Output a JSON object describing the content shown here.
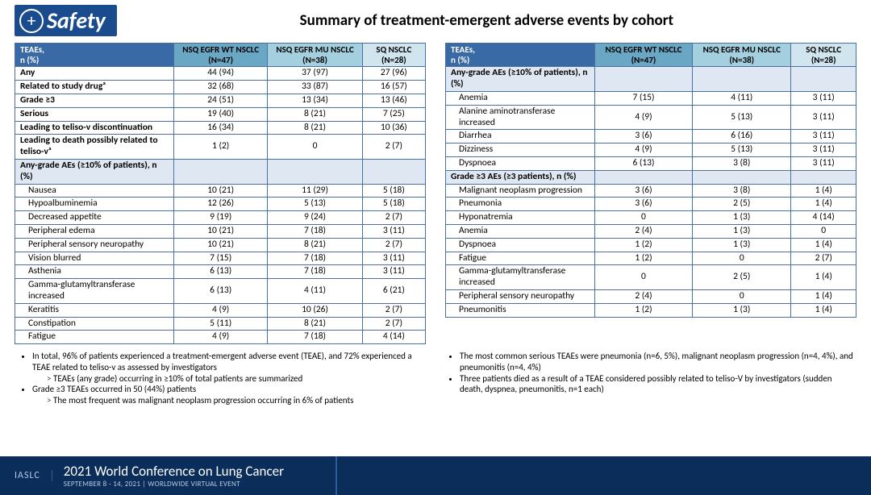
{
  "badge": {
    "icon": "+",
    "text": "Safety"
  },
  "title": "Summary of treatment-emergent adverse events by cohort",
  "columns": {
    "row_header": "TEAEs,\nn (%)",
    "c1": "NSQ EGFR WT NSCLC (N=47)",
    "c2": "NSQ EGFR MU NSCLC (N=38)",
    "c3": "SQ NSCLC (N=28)"
  },
  "left_rows": [
    {
      "label": "Any",
      "bold": true,
      "v": [
        "44 (94)",
        "37 (97)",
        "27 (96)"
      ]
    },
    {
      "label": "Related to study drugᵃ",
      "bold": true,
      "v": [
        "32 (68)",
        "33 (87)",
        "16 (57)"
      ]
    },
    {
      "label": "Grade ≥3",
      "bold": true,
      "v": [
        "24 (51)",
        "13 (34)",
        "13 (46)"
      ]
    },
    {
      "label": "Serious",
      "bold": true,
      "v": [
        "19 (40)",
        "8 (21)",
        "7 (25)"
      ]
    },
    {
      "label": "Leading to teliso-v discontinuation",
      "bold": true,
      "v": [
        "16 (34)",
        "8 (21)",
        "10 (36)"
      ]
    },
    {
      "label": "Leading to death possibly related to teliso-vᵃ",
      "bold": true,
      "v": [
        "1 (2)",
        "0",
        "2 (7)"
      ]
    },
    {
      "section": "Any-grade AEs (≥10% of patients), n (%)"
    },
    {
      "label": "Nausea",
      "indent": true,
      "v": [
        "10 (21)",
        "11 (29)",
        "5 (18)"
      ]
    },
    {
      "label": "Hypoalbuminemia",
      "indent": true,
      "v": [
        "12 (26)",
        "5 (13)",
        "5 (18)"
      ]
    },
    {
      "label": "Decreased appetite",
      "indent": true,
      "v": [
        "9 (19)",
        "9 (24)",
        "2 (7)"
      ]
    },
    {
      "label": "Peripheral edema",
      "indent": true,
      "v": [
        "10 (21)",
        "7 (18)",
        "3 (11)"
      ]
    },
    {
      "label": "Peripheral sensory neuropathy",
      "indent": true,
      "v": [
        "10 (21)",
        "8 (21)",
        "2 (7)"
      ]
    },
    {
      "label": "Vision blurred",
      "indent": true,
      "v": [
        "7 (15)",
        "7 (18)",
        "3 (11)"
      ]
    },
    {
      "label": "Asthenia",
      "indent": true,
      "v": [
        "6 (13)",
        "7 (18)",
        "3 (11)"
      ]
    },
    {
      "label": "Gamma-glutamyltransferase increased",
      "indent": true,
      "v": [
        "6 (13)",
        "4 (11)",
        "6 (21)"
      ]
    },
    {
      "label": "Keratitis",
      "indent": true,
      "v": [
        "4 (9)",
        "10 (26)",
        "2 (7)"
      ]
    },
    {
      "label": "Constipation",
      "indent": true,
      "v": [
        "5 (11)",
        "8 (21)",
        "2 (7)"
      ]
    },
    {
      "label": "Fatigue",
      "indent": true,
      "v": [
        "4 (9)",
        "7 (18)",
        "4 (14)"
      ]
    }
  ],
  "right_rows": [
    {
      "section": "Any-grade AEs (≥10% of patients), n (%)"
    },
    {
      "label": "Anemia",
      "indent": true,
      "v": [
        "7 (15)",
        "4 (11)",
        "3 (11)"
      ]
    },
    {
      "label": "Alanine aminotransferase increased",
      "indent": true,
      "v": [
        "4 (9)",
        "5 (13)",
        "3 (11)"
      ]
    },
    {
      "label": "Diarrhea",
      "indent": true,
      "v": [
        "3 (6)",
        "6 (16)",
        "3 (11)"
      ]
    },
    {
      "label": "Dizziness",
      "indent": true,
      "v": [
        "4 (9)",
        "5 (13)",
        "3 (11)"
      ]
    },
    {
      "label": "Dyspnoea",
      "indent": true,
      "v": [
        "6 (13)",
        "3 (8)",
        "3 (11)"
      ]
    },
    {
      "section": "Grade ≥3 AEs (≥3 patients), n (%)"
    },
    {
      "label": "Malignant neoplasm progression",
      "indent": true,
      "v": [
        "3 (6)",
        "3 (8)",
        "1 (4)"
      ]
    },
    {
      "label": "Pneumonia",
      "indent": true,
      "v": [
        "3 (6)",
        "2 (5)",
        "1 (4)"
      ]
    },
    {
      "label": "Hyponatremia",
      "indent": true,
      "v": [
        "0",
        "1 (3)",
        "4 (14)"
      ]
    },
    {
      "label": "Anemia",
      "indent": true,
      "v": [
        "2 (4)",
        "1 (3)",
        "0"
      ]
    },
    {
      "label": "Dyspnoea",
      "indent": true,
      "v": [
        "1 (2)",
        "1 (3)",
        "1 (4)"
      ]
    },
    {
      "label": "Fatigue",
      "indent": true,
      "v": [
        "1 (2)",
        "0",
        "2 (7)"
      ]
    },
    {
      "label": "Gamma-glutamyltransferase increased",
      "indent": true,
      "v": [
        "0",
        "2 (5)",
        "1 (4)"
      ]
    },
    {
      "label": "Peripheral sensory neuropathy",
      "indent": true,
      "v": [
        "2 (4)",
        "0",
        "1 (4)"
      ]
    },
    {
      "label": "Pneumonitis",
      "indent": true,
      "v": [
        "1 (2)",
        "1 (3)",
        "1 (4)"
      ]
    }
  ],
  "bullets_left": [
    {
      "t": "In total, 96% of patients experienced a treatment-emergent adverse event (TEAE), and 72% experienced a TEAE related to teliso-v as assessed by investigators",
      "sub": [
        "TEAEs (any grade) occurring in ≥10% of total patients are summarized"
      ]
    },
    {
      "t": "Grade ≥3 TEAEs occurred in 50 (44%) patients",
      "sub": [
        "The most frequent was malignant neoplasm progression occurring in 6% of patients"
      ]
    }
  ],
  "bullets_right": [
    {
      "t": "The most common serious TEAEs were pneumonia (n=6, 5%), malignant neoplasm progression (n=4, 4%), and pneumonitis (n=4, 4%)"
    },
    {
      "t": "Three patients died as a result of a TEAE considered possibly related to teliso-V by investigators (sudden death, dyspnea, pneumonitis, n=1 each)"
    }
  ],
  "footer": {
    "logo": "IASLC",
    "title": "2021 World Conference on Lung Cancer",
    "sub": "SEPTEMBER 8 - 14, 2021 | WORLDWIDE VIRTUAL EVENT"
  }
}
